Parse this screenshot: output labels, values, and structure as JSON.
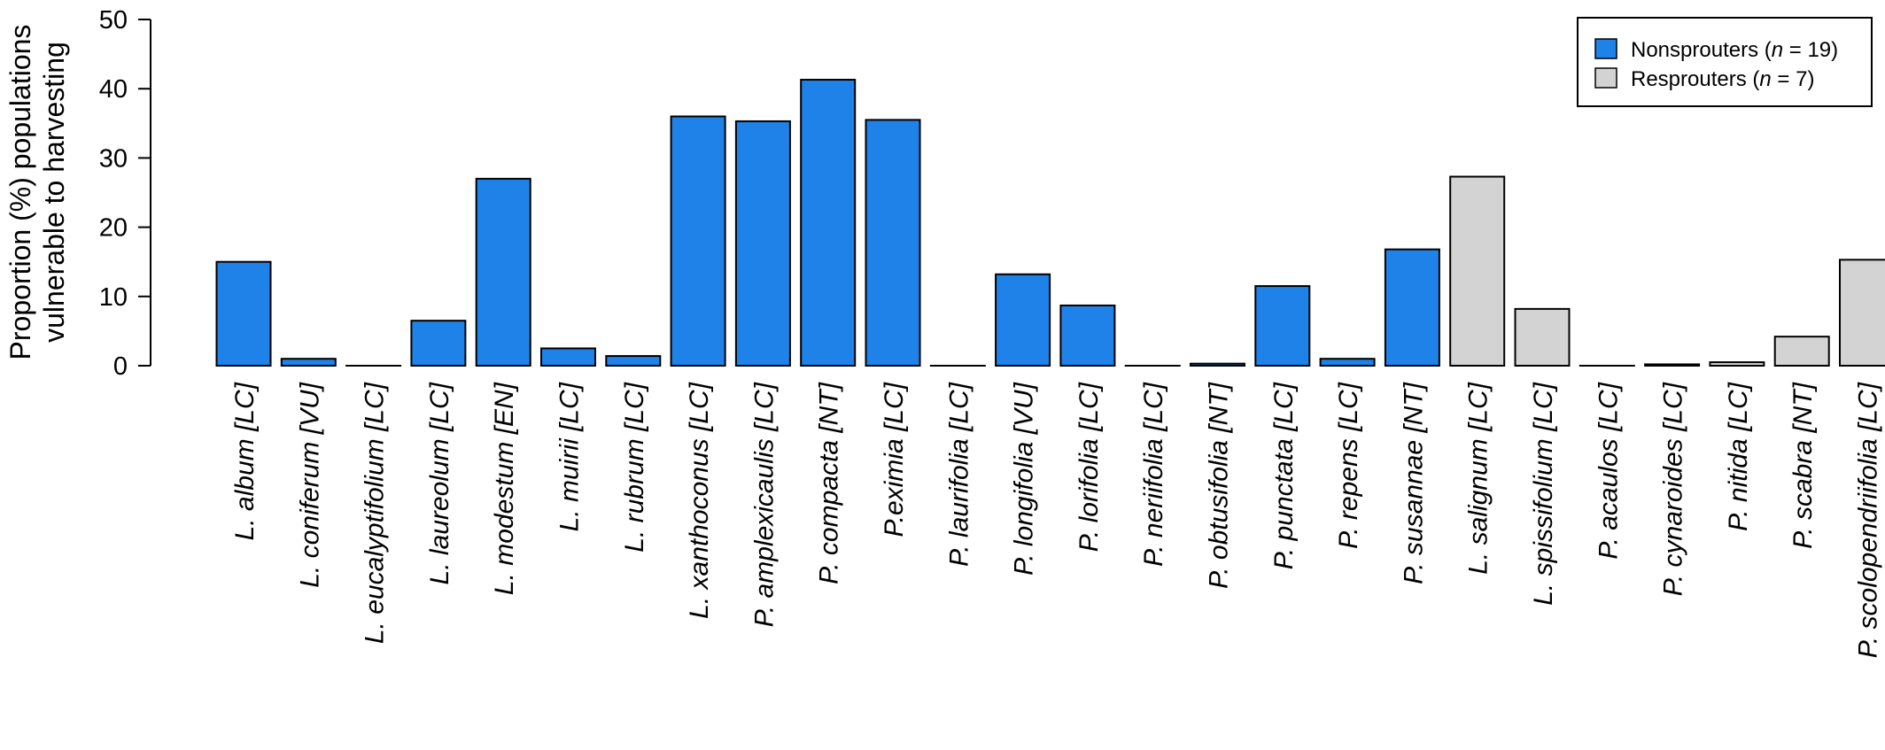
{
  "chart_data": {
    "type": "bar",
    "ylabel_lines": [
      "Proportion (%) populations",
      "vulnerable to harvesting"
    ],
    "xlabel": "",
    "ylim": [
      0,
      50
    ],
    "yticks": [
      0,
      10,
      20,
      30,
      40,
      50
    ],
    "grid": false,
    "legend_position": "top-right",
    "colors": {
      "Nonsprouters": "#1e82e8",
      "Resprouters": "#d3d3d3"
    },
    "legend": [
      {
        "prefix": "Nonsprouters (",
        "n_symbol": "n",
        "suffix": " = 19)",
        "color": "#1e82e8"
      },
      {
        "prefix": "Resprouters (",
        "n_symbol": "n",
        "suffix": " = 7)",
        "color": "#d3d3d3"
      }
    ],
    "categories": [
      "L. album [LC]",
      "L. coniferum [VU]",
      "L. eucalyptifolium [LC]",
      "L. laureolum [LC]",
      "L. modestum [EN]",
      "L. muirii [LC]",
      "L. rubrum [LC]",
      "L. xanthoconus [LC]",
      "P. amplexicaulis [LC]",
      "P. compacta [NT]",
      "P.eximia [LC]",
      "P. laurifolia [LC]",
      "P. longifolia [VU]",
      "P. lorifolia [LC]",
      "P. neriifolia [LC]",
      "P. obtusifolia [NT]",
      "P. punctata [LC]",
      "P. repens [LC]",
      "P. susannae [NT]",
      "L. salignum [LC]",
      "L. spissifolium [LC]",
      "P. acaulos [LC]",
      "P. cynaroides [LC]",
      "P. nitida [LC]",
      "P. scabra [NT]",
      "P. scolopendriifolia [LC]"
    ],
    "values": [
      15.0,
      1.0,
      0.0,
      6.5,
      27.0,
      2.5,
      1.4,
      36.0,
      35.3,
      41.3,
      35.5,
      0.0,
      13.2,
      8.7,
      0.0,
      0.3,
      11.5,
      1.0,
      16.8,
      27.3,
      8.2,
      0.0,
      0.2,
      0.5,
      4.2,
      15.3
    ],
    "groups": [
      "Nonsprouters",
      "Nonsprouters",
      "Nonsprouters",
      "Nonsprouters",
      "Nonsprouters",
      "Nonsprouters",
      "Nonsprouters",
      "Nonsprouters",
      "Nonsprouters",
      "Nonsprouters",
      "Nonsprouters",
      "Nonsprouters",
      "Nonsprouters",
      "Nonsprouters",
      "Nonsprouters",
      "Nonsprouters",
      "Nonsprouters",
      "Nonsprouters",
      "Nonsprouters",
      "Resprouters",
      "Resprouters",
      "Resprouters",
      "Resprouters",
      "Resprouters",
      "Resprouters",
      "Resprouters"
    ]
  }
}
